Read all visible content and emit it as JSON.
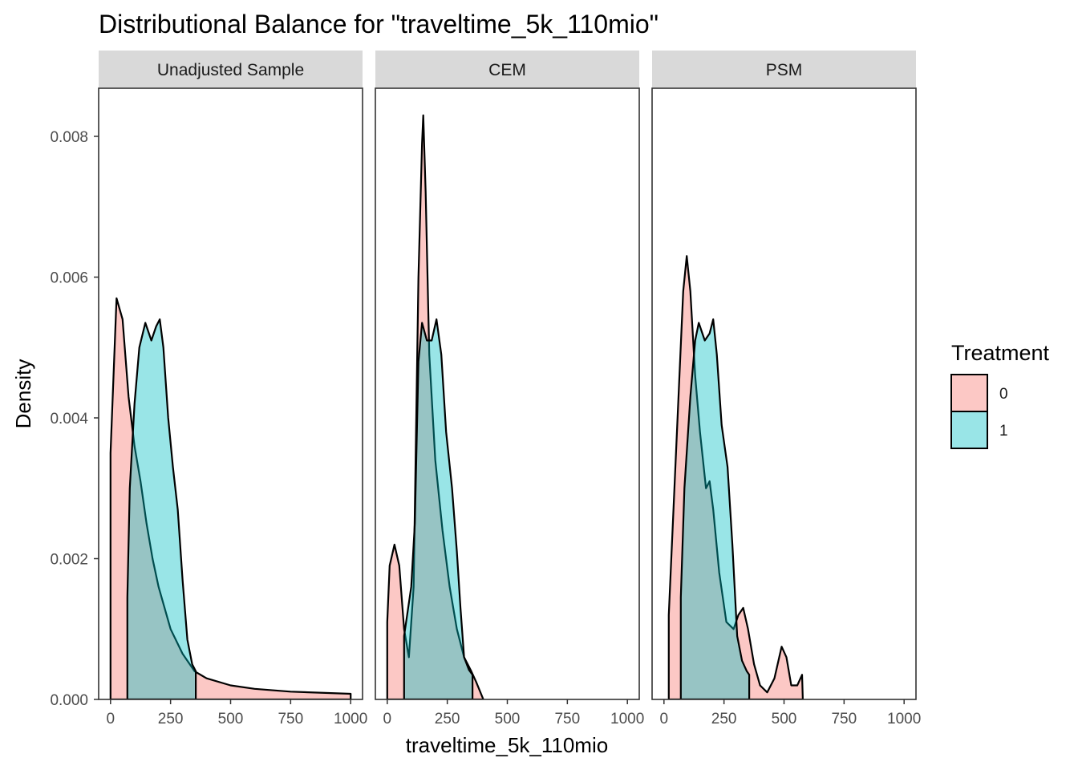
{
  "chart_data": {
    "type": "area",
    "subtype": "density",
    "title": "Distributional Balance for \"traveltime_5k_110mio\"",
    "xlabel": "traveltime_5k_110mio",
    "ylabel": "Density",
    "xlim": [
      0,
      1000
    ],
    "ylim": [
      0,
      0.0085
    ],
    "x_ticks": [
      0,
      250,
      500,
      750,
      1000
    ],
    "x_tick_labels": [
      "0",
      "250",
      "500",
      "750",
      "1000"
    ],
    "y_ticks": [
      0,
      0.002,
      0.004,
      0.006,
      0.008
    ],
    "y_tick_labels": [
      "0.000",
      "0.002",
      "0.004",
      "0.006",
      "0.008"
    ],
    "grid": false,
    "legend": {
      "title": "Treatment",
      "position": "right",
      "entries": [
        {
          "label": "0",
          "color": "#F8766D"
        },
        {
          "label": "1",
          "color": "#00BFC4"
        }
      ]
    },
    "panels": [
      {
        "label": "Unadjusted Sample",
        "series": [
          {
            "name": "0",
            "color": "#F8766D",
            "points": [
              [
                0,
                0
              ],
              [
                0,
                0.0035
              ],
              [
                25,
                0.0057
              ],
              [
                50,
                0.0054
              ],
              [
                75,
                0.0043
              ],
              [
                100,
                0.0036
              ],
              [
                125,
                0.0031
              ],
              [
                150,
                0.0025
              ],
              [
                175,
                0.002
              ],
              [
                200,
                0.0016
              ],
              [
                250,
                0.001
              ],
              [
                300,
                0.00065
              ],
              [
                350,
                0.0004
              ],
              [
                400,
                0.0003
              ],
              [
                500,
                0.0002
              ],
              [
                600,
                0.00015
              ],
              [
                750,
                0.00011
              ],
              [
                1000,
                8e-05
              ],
              [
                1000,
                0
              ]
            ]
          },
          {
            "name": "1",
            "color": "#00BFC4",
            "points": [
              [
                70,
                0
              ],
              [
                70,
                0.00145
              ],
              [
                80,
                0.003
              ],
              [
                100,
                0.0042
              ],
              [
                120,
                0.005
              ],
              [
                145,
                0.00535
              ],
              [
                170,
                0.0051
              ],
              [
                190,
                0.0053
              ],
              [
                205,
                0.0054
              ],
              [
                220,
                0.005
              ],
              [
                240,
                0.004
              ],
              [
                260,
                0.0033
              ],
              [
                280,
                0.0027
              ],
              [
                300,
                0.0017
              ],
              [
                320,
                0.00085
              ],
              [
                340,
                0.0005
              ],
              [
                355,
                0.0004
              ],
              [
                355,
                0
              ]
            ]
          }
        ]
      },
      {
        "label": "CEM",
        "series": [
          {
            "name": "0",
            "color": "#F8766D",
            "points": [
              [
                0,
                0
              ],
              [
                0,
                0.0011
              ],
              [
                10,
                0.0019
              ],
              [
                30,
                0.0022
              ],
              [
                50,
                0.0019
              ],
              [
                70,
                0.001
              ],
              [
                90,
                0.0006
              ],
              [
                110,
                0.0016
              ],
              [
                130,
                0.006
              ],
              [
                145,
                0.0079
              ],
              [
                150,
                0.0083
              ],
              [
                160,
                0.0072
              ],
              [
                175,
                0.0049
              ],
              [
                200,
                0.0034
              ],
              [
                230,
                0.0024
              ],
              [
                260,
                0.0016
              ],
              [
                290,
                0.001
              ],
              [
                320,
                0.0006
              ],
              [
                350,
                0.0004
              ],
              [
                370,
                0.00025
              ],
              [
                400,
                0
              ],
              [
                400,
                0
              ]
            ]
          },
          {
            "name": "1",
            "color": "#00BFC4",
            "points": [
              [
                70,
                0
              ],
              [
                70,
                0.0009
              ],
              [
                100,
                0.0016
              ],
              [
                115,
                0.0025
              ],
              [
                130,
                0.0048
              ],
              [
                145,
                0.00535
              ],
              [
                165,
                0.0051
              ],
              [
                185,
                0.0051
              ],
              [
                205,
                0.0054
              ],
              [
                225,
                0.0049
              ],
              [
                245,
                0.0038
              ],
              [
                270,
                0.003
              ],
              [
                290,
                0.0021
              ],
              [
                305,
                0.0013
              ],
              [
                320,
                0.0006
              ],
              [
                340,
                0.00042
              ],
              [
                355,
                0.00035
              ],
              [
                355,
                0
              ]
            ]
          }
        ]
      },
      {
        "label": "PSM",
        "series": [
          {
            "name": "0",
            "color": "#F8766D",
            "points": [
              [
                20,
                0
              ],
              [
                20,
                0.0012
              ],
              [
                50,
                0.0035
              ],
              [
                80,
                0.0058
              ],
              [
                95,
                0.0063
              ],
              [
                110,
                0.0058
              ],
              [
                130,
                0.0046
              ],
              [
                150,
                0.0038
              ],
              [
                175,
                0.003
              ],
              [
                190,
                0.0031
              ],
              [
                205,
                0.0027
              ],
              [
                230,
                0.0018
              ],
              [
                260,
                0.0011
              ],
              [
                290,
                0.001
              ],
              [
                310,
                0.0012
              ],
              [
                330,
                0.0013
              ],
              [
                350,
                0.001
              ],
              [
                375,
                0.0005
              ],
              [
                400,
                0.0002
              ],
              [
                430,
                0.0001
              ],
              [
                460,
                0.0003
              ],
              [
                490,
                0.00075
              ],
              [
                510,
                0.0006
              ],
              [
                530,
                0.0002
              ],
              [
                555,
                0.0002
              ],
              [
                575,
                0.00035
              ],
              [
                578,
                0
              ],
              [
                578,
                0
              ]
            ]
          },
          {
            "name": "1",
            "color": "#00BFC4",
            "points": [
              [
                70,
                0
              ],
              [
                70,
                0.00145
              ],
              [
                85,
                0.003
              ],
              [
                110,
                0.0043
              ],
              [
                130,
                0.0051
              ],
              [
                145,
                0.00535
              ],
              [
                170,
                0.0051
              ],
              [
                190,
                0.0052
              ],
              [
                205,
                0.0054
              ],
              [
                220,
                0.0049
              ],
              [
                240,
                0.0039
              ],
              [
                265,
                0.0033
              ],
              [
                285,
                0.0022
              ],
              [
                305,
                0.0009
              ],
              [
                325,
                0.00055
              ],
              [
                345,
                0.0004
              ],
              [
                355,
                0.00035
              ],
              [
                355,
                0
              ]
            ]
          }
        ]
      }
    ]
  }
}
